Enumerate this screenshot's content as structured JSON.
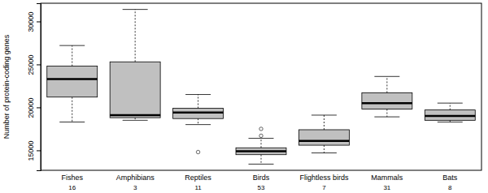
{
  "chart_data": {
    "type": "box",
    "y_label": "Number of protein-coding genes",
    "categories": [
      "Fishes",
      "Amphibians",
      "Reptiles",
      "Birds",
      "Flightless birds",
      "Mammals",
      "Bats"
    ],
    "counts": [
      16,
      3,
      11,
      53,
      7,
      31,
      8
    ],
    "boxes": [
      {
        "whisker_low": 18300,
        "q1": 21200,
        "median": 23300,
        "q3": 24800,
        "whisker_high": 27200,
        "outliers": []
      },
      {
        "whisker_low": 18500,
        "q1": 18800,
        "median": 19100,
        "q3": 25300,
        "whisker_high": 31400,
        "outliers": []
      },
      {
        "whisker_low": 18000,
        "q1": 18700,
        "median": 19400,
        "q3": 19900,
        "whisker_high": 21500,
        "outliers": [
          14800
        ]
      },
      {
        "whisker_low": 13400,
        "q1": 14500,
        "median": 14900,
        "q3": 15300,
        "whisker_high": 16400,
        "outliers": [
          16700,
          17500
        ]
      },
      {
        "whisker_low": 14700,
        "q1": 15600,
        "median": 16100,
        "q3": 17400,
        "whisker_high": 19100,
        "outliers": []
      },
      {
        "whisker_low": 18900,
        "q1": 19800,
        "median": 20500,
        "q3": 21700,
        "whisker_high": 23600,
        "outliers": []
      },
      {
        "whisker_low": 18300,
        "q1": 18500,
        "median": 19000,
        "q3": 19700,
        "whisker_high": 20500,
        "outliers": []
      }
    ],
    "color": "#c0c0c0",
    "ylim": [
      12680,
      32120
    ],
    "yticks": [
      15000,
      20000,
      25000,
      30000
    ],
    "grid": false
  }
}
